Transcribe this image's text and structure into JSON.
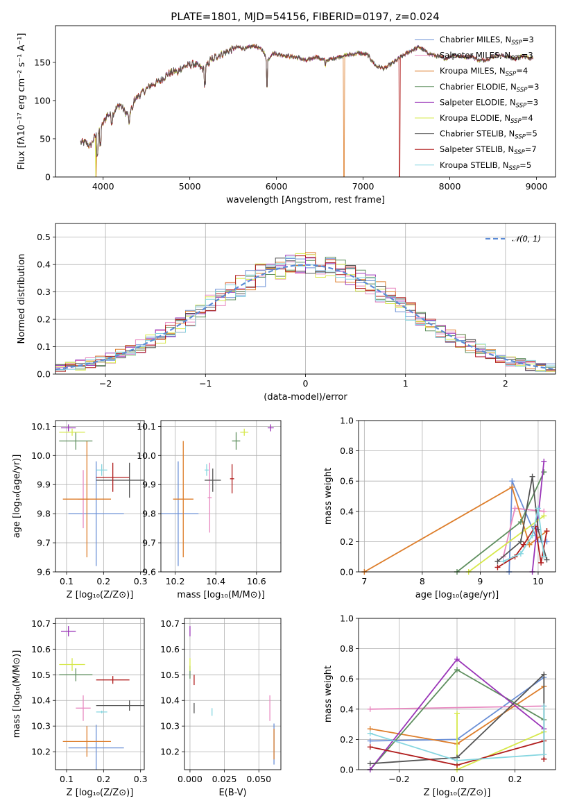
{
  "figure": {
    "title": "PLATE=1801, MJD=54156, FIBERID=0197, z=0.024"
  },
  "models": [
    {
      "name": "Chabrier MILES",
      "nssp": "3",
      "color": "#6a8fd6"
    },
    {
      "name": "Salpeter MILES",
      "nssp": "3",
      "color": "#e889c0"
    },
    {
      "name": "Kroupa MILES",
      "nssp": "4",
      "color": "#dd7d2a"
    },
    {
      "name": "Chabrier ELODIE",
      "nssp": "3",
      "color": "#5f8f5f"
    },
    {
      "name": "Salpeter ELODIE",
      "nssp": "3",
      "color": "#9a35b8"
    },
    {
      "name": "Kroupa ELODIE",
      "nssp": "4",
      "color": "#d6e84a"
    },
    {
      "name": "Chabrier STELIB",
      "nssp": "5",
      "color": "#555555"
    },
    {
      "name": "Salpeter STELIB",
      "nssp": "7",
      "color": "#b01c1c"
    },
    {
      "name": "Kroupa STELIB",
      "nssp": "5",
      "color": "#86d6e0"
    }
  ],
  "chart_data": [
    {
      "id": "spectrum",
      "type": "line",
      "xlabel": "wavelength [Angstrom, rest frame]",
      "ylabel": "Flux [fλ10⁻¹⁷ erg cm⁻² s⁻¹ A⁻¹]",
      "xlim": [
        3450,
        9220
      ],
      "ylim": [
        0,
        198
      ],
      "xticks": [
        4000,
        5000,
        6000,
        7000,
        8000,
        9000
      ],
      "yticks": [
        0,
        50,
        100,
        150
      ],
      "legend_loc": "upper-right",
      "continuum": [
        [
          3740,
          45
        ],
        [
          3800,
          45
        ],
        [
          3850,
          40
        ],
        [
          3900,
          52
        ],
        [
          3950,
          58
        ],
        [
          4000,
          70
        ],
        [
          4050,
          82
        ],
        [
          4100,
          80
        ],
        [
          4150,
          90
        ],
        [
          4200,
          95
        ],
        [
          4250,
          85
        ],
        [
          4300,
          80
        ],
        [
          4350,
          100
        ],
        [
          4450,
          110
        ],
        [
          4550,
          120
        ],
        [
          4650,
          125
        ],
        [
          4750,
          135
        ],
        [
          4860,
          140
        ],
        [
          4950,
          145
        ],
        [
          5050,
          148
        ],
        [
          5170,
          140
        ],
        [
          5250,
          155
        ],
        [
          5350,
          160
        ],
        [
          5450,
          165
        ],
        [
          5550,
          170
        ],
        [
          5650,
          168
        ],
        [
          5750,
          172
        ],
        [
          5850,
          165
        ],
        [
          5890,
          150
        ],
        [
          5950,
          162
        ],
        [
          6050,
          160
        ],
        [
          6150,
          158
        ],
        [
          6250,
          156
        ],
        [
          6350,
          152
        ],
        [
          6450,
          158
        ],
        [
          6563,
          152
        ],
        [
          6650,
          155
        ],
        [
          6750,
          158
        ],
        [
          6850,
          160
        ],
        [
          6950,
          162
        ],
        [
          7050,
          160
        ],
        [
          7150,
          145
        ],
        [
          7250,
          142
        ],
        [
          7350,
          150
        ],
        [
          7450,
          158
        ],
        [
          7550,
          165
        ],
        [
          7650,
          170
        ],
        [
          7750,
          162
        ],
        [
          7850,
          158
        ],
        [
          7950,
          155
        ],
        [
          8050,
          160
        ],
        [
          8150,
          157
        ],
        [
          8250,
          158
        ],
        [
          8350,
          152
        ],
        [
          8450,
          155
        ],
        [
          8550,
          160
        ],
        [
          8650,
          158
        ],
        [
          8750,
          155
        ],
        [
          8850,
          158
        ],
        [
          8950,
          155
        ]
      ],
      "drops": [
        {
          "model": 2,
          "x": 3920,
          "y": 0
        },
        {
          "model": 5,
          "x": 3915,
          "y": 0
        },
        {
          "model": 2,
          "x": 6780,
          "y": 0
        },
        {
          "model": 7,
          "x": 7420,
          "y": 0
        }
      ]
    },
    {
      "id": "residuals",
      "type": "histogram",
      "xlabel": "(data-model)/error",
      "ylabel": "Normed distribution",
      "xlim": [
        -2.5,
        2.5
      ],
      "ylim": [
        0,
        0.55
      ],
      "xticks": [
        -2,
        -1,
        0,
        1,
        2
      ],
      "yticks": [
        0.0,
        0.1,
        0.2,
        0.3,
        0.4,
        0.5
      ],
      "bin_width": 0.1,
      "legend": "𝒩(0, 1)",
      "legend_loc": "upper-right",
      "gaussian": {
        "mean": 0,
        "sigma": 1
      }
    },
    {
      "id": "age_vs_Z",
      "type": "errorbar",
      "xlabel": "Z [log₁₀(Z/Z⊙)]",
      "ylabel": "age [log₁₀(age/yr)]",
      "xlim": [
        0.07,
        0.31
      ],
      "ylim": [
        9.6,
        10.12
      ],
      "xticks": [
        0.1,
        0.2,
        0.3
      ],
      "yticks": [
        9.6,
        9.7,
        9.8,
        9.9,
        10.0,
        10.1
      ],
      "points": [
        {
          "model": 0,
          "x": 0.18,
          "y": 9.8,
          "xerr": 0.075,
          "yerr": 0.18
        },
        {
          "model": 1,
          "x": 0.145,
          "y": 9.85,
          "xerr": 0.015,
          "yerr": 0.1
        },
        {
          "model": 2,
          "x": 0.155,
          "y": 9.85,
          "xerr": 0.065,
          "yerr": 0.2
        },
        {
          "model": 3,
          "x": 0.125,
          "y": 10.05,
          "xerr": 0.045,
          "yerr": 0.03
        },
        {
          "model": 4,
          "x": 0.105,
          "y": 10.095,
          "xerr": 0.02,
          "yerr": 0.012
        },
        {
          "model": 5,
          "x": 0.115,
          "y": 10.08,
          "xerr": 0.035,
          "yerr": 0.012
        },
        {
          "model": 6,
          "x": 0.27,
          "y": 9.915,
          "xerr": 0.09,
          "yerr": 0.06
        },
        {
          "model": 7,
          "x": 0.225,
          "y": 9.925,
          "xerr": 0.045,
          "yerr": 0.05
        },
        {
          "model": 8,
          "x": 0.195,
          "y": 9.95,
          "xerr": 0.015,
          "yerr": 0.02
        }
      ]
    },
    {
      "id": "age_vs_mass",
      "type": "errorbar",
      "xlabel": "mass [log₁₀(M/M⊙)]",
      "ylabel": "",
      "xlim": [
        10.13,
        10.72
      ],
      "ylim": [
        9.6,
        10.12
      ],
      "xticks": [
        10.2,
        10.4,
        10.6
      ],
      "yticks": [
        9.6,
        9.7,
        9.8,
        9.9,
        10.0,
        10.1
      ],
      "points": [
        {
          "model": 0,
          "x": 10.215,
          "y": 9.8,
          "xerr": 0.1,
          "yerr": 0.18
        },
        {
          "model": 1,
          "x": 10.37,
          "y": 9.855,
          "xerr": 0.01,
          "yerr": 0.12
        },
        {
          "model": 2,
          "x": 10.24,
          "y": 9.85,
          "xerr": 0.05,
          "yerr": 0.2
        },
        {
          "model": 3,
          "x": 10.5,
          "y": 10.05,
          "xerr": 0.02,
          "yerr": 0.03
        },
        {
          "model": 4,
          "x": 10.67,
          "y": 10.095,
          "xerr": 0.015,
          "yerr": 0.012
        },
        {
          "model": 5,
          "x": 10.54,
          "y": 10.08,
          "xerr": 0.02,
          "yerr": 0.012
        },
        {
          "model": 6,
          "x": 10.385,
          "y": 9.915,
          "xerr": 0.04,
          "yerr": 0.04
        },
        {
          "model": 7,
          "x": 10.48,
          "y": 9.92,
          "xerr": 0.01,
          "yerr": 0.05
        },
        {
          "model": 8,
          "x": 10.355,
          "y": 9.95,
          "xerr": 0.01,
          "yerr": 0.02
        }
      ]
    },
    {
      "id": "weight_vs_age",
      "type": "line",
      "xlabel": "age [log₁₀(age/yr)]",
      "ylabel": "mass weight",
      "xlim": [
        6.9,
        10.3
      ],
      "ylim": [
        0,
        1.0
      ],
      "xticks": [
        7,
        8,
        9,
        10
      ],
      "yticks": [
        0.0,
        0.2,
        0.4,
        0.6,
        0.8,
        1.0
      ],
      "series": [
        {
          "model": 0,
          "points": [
            [
              9.5,
              0.0
            ],
            [
              9.55,
              0.6
            ],
            [
              10.0,
              0.2
            ],
            [
              10.15,
              0.2
            ]
          ]
        },
        {
          "model": 1,
          "points": [
            [
              9.4,
              0.1
            ],
            [
              9.6,
              0.42
            ],
            [
              10.1,
              0.4
            ]
          ]
        },
        {
          "model": 2,
          "points": [
            [
              7.0,
              0.0
            ],
            [
              9.55,
              0.56
            ],
            [
              9.85,
              0.18
            ],
            [
              10.15,
              0.27
            ]
          ]
        },
        {
          "model": 3,
          "points": [
            [
              8.6,
              0.0
            ],
            [
              9.7,
              0.33
            ],
            [
              10.1,
              0.66
            ]
          ]
        },
        {
          "model": 4,
          "points": [
            [
              9.9,
              0.0
            ],
            [
              10.1,
              0.73
            ]
          ]
        },
        {
          "model": 5,
          "points": [
            [
              8.8,
              0.0
            ],
            [
              10.1,
              0.37
            ]
          ]
        },
        {
          "model": 6,
          "points": [
            [
              9.3,
              0.07
            ],
            [
              9.7,
              0.2
            ],
            [
              9.9,
              0.63
            ],
            [
              10.0,
              0.28
            ],
            [
              10.15,
              0.08
            ]
          ]
        },
        {
          "model": 7,
          "points": [
            [
              9.3,
              0.03
            ],
            [
              9.6,
              0.1
            ],
            [
              9.75,
              0.18
            ],
            [
              9.95,
              0.3
            ],
            [
              10.05,
              0.06
            ],
            [
              10.15,
              0.27
            ]
          ]
        },
        {
          "model": 8,
          "points": [
            [
              9.4,
              0.07
            ],
            [
              9.7,
              0.12
            ],
            [
              9.9,
              0.24
            ],
            [
              10.0,
              0.42
            ],
            [
              10.1,
              0.1
            ]
          ]
        }
      ]
    },
    {
      "id": "mass_vs_Z",
      "type": "errorbar",
      "xlabel": "Z [log₁₀(Z/Z⊙)]",
      "ylabel": "mass [log₁₀(M/M⊙)]",
      "xlim": [
        0.07,
        0.31
      ],
      "ylim": [
        10.13,
        10.72
      ],
      "xticks": [
        0.1,
        0.2,
        0.3
      ],
      "yticks": [
        10.2,
        10.3,
        10.4,
        10.5,
        10.6,
        10.7
      ],
      "points": [
        {
          "model": 0,
          "x": 0.18,
          "y": 10.215,
          "xerr": 0.075,
          "yerr": 0.09
        },
        {
          "model": 1,
          "x": 0.145,
          "y": 10.37,
          "xerr": 0.02,
          "yerr": 0.05
        },
        {
          "model": 2,
          "x": 0.155,
          "y": 10.24,
          "xerr": 0.065,
          "yerr": 0.06
        },
        {
          "model": 3,
          "x": 0.125,
          "y": 10.5,
          "xerr": 0.045,
          "yerr": 0.025
        },
        {
          "model": 4,
          "x": 0.105,
          "y": 10.67,
          "xerr": 0.02,
          "yerr": 0.02
        },
        {
          "model": 5,
          "x": 0.115,
          "y": 10.54,
          "xerr": 0.035,
          "yerr": 0.025
        },
        {
          "model": 6,
          "x": 0.27,
          "y": 10.38,
          "xerr": 0.09,
          "yerr": 0.02
        },
        {
          "model": 7,
          "x": 0.225,
          "y": 10.48,
          "xerr": 0.045,
          "yerr": 0.015
        },
        {
          "model": 8,
          "x": 0.195,
          "y": 10.355,
          "xerr": 0.015,
          "yerr": 0.005
        }
      ]
    },
    {
      "id": "mass_vs_ebv",
      "type": "errorbar",
      "xlabel": "E(B-V)",
      "ylabel": "",
      "xlim": [
        -0.004,
        0.066
      ],
      "ylim": [
        10.13,
        10.72
      ],
      "xticks": [
        0.0,
        0.025,
        0.05
      ],
      "xtick_labels": [
        "0.000",
        "0.025",
        "0.050"
      ],
      "yticks": [
        10.2,
        10.3,
        10.4,
        10.5,
        10.6,
        10.7
      ],
      "points": [
        {
          "model": 0,
          "x": 0.061,
          "y": 10.23,
          "xerr": 0,
          "yerr": 0.08
        },
        {
          "model": 1,
          "x": 0.058,
          "y": 10.37,
          "xerr": 0,
          "yerr": 0.05
        },
        {
          "model": 2,
          "x": 0.061,
          "y": 10.23,
          "xerr": 0,
          "yerr": 0.06
        },
        {
          "model": 3,
          "x": 0.0,
          "y": 10.51,
          "xerr": 0,
          "yerr": 0.025
        },
        {
          "model": 4,
          "x": 0.0,
          "y": 10.67,
          "xerr": 0,
          "yerr": 0.02
        },
        {
          "model": 5,
          "x": 0.0,
          "y": 10.54,
          "xerr": 0,
          "yerr": 0.025
        },
        {
          "model": 6,
          "x": 0.003,
          "y": 10.37,
          "xerr": 0,
          "yerr": 0.02
        },
        {
          "model": 7,
          "x": 0.003,
          "y": 10.48,
          "xerr": 0,
          "yerr": 0.02
        },
        {
          "model": 8,
          "x": 0.016,
          "y": 10.355,
          "xerr": 0,
          "yerr": 0.015
        }
      ]
    },
    {
      "id": "weight_vs_Z",
      "type": "line",
      "xlabel": "Z [log₁₀(Z/Z⊙)]",
      "ylabel": "mass weight",
      "xlim": [
        -0.34,
        0.34
      ],
      "ylim": [
        0,
        1.0
      ],
      "xticks": [
        -0.2,
        0.0,
        0.2
      ],
      "xtick_labels": [
        "−0.2",
        "0.0",
        "0.2"
      ],
      "yticks": [
        0.0,
        0.2,
        0.4,
        0.6,
        0.8,
        1.0
      ],
      "series": [
        {
          "model": 0,
          "points": [
            [
              -0.3,
              0.19
            ],
            [
              0.0,
              0.2
            ],
            [
              0.3,
              0.61
            ]
          ]
        },
        {
          "model": 1,
          "points": [
            [
              -0.3,
              0.4
            ],
            [
              0.3,
              0.42
            ]
          ]
        },
        {
          "model": 2,
          "points": [
            [
              -0.3,
              0.27
            ],
            [
              0.0,
              0.17
            ],
            [
              0.3,
              0.55
            ]
          ]
        },
        {
          "model": 3,
          "points": [
            [
              -0.3,
              0.0
            ],
            [
              0.0,
              0.66
            ],
            [
              0.3,
              0.33
            ]
          ]
        },
        {
          "model": 4,
          "points": [
            [
              -0.3,
              0.0
            ],
            [
              0.0,
              0.73
            ],
            [
              0.3,
              0.27
            ]
          ]
        },
        {
          "model": 5,
          "points": [
            [
              0.0,
              0.37
            ],
            [
              0.0,
              0.0
            ],
            [
              0.3,
              0.25
            ]
          ]
        },
        {
          "model": 6,
          "points": [
            [
              -0.3,
              0.04
            ],
            [
              0.0,
              0.08
            ],
            [
              0.3,
              0.63
            ],
            [
              0.3,
              0.07
            ]
          ]
        },
        {
          "model": 7,
          "points": [
            [
              -0.3,
              0.15
            ],
            [
              0.0,
              0.03
            ],
            [
              0.3,
              0.19
            ],
            [
              0.3,
              0.07
            ]
          ]
        },
        {
          "model": 8,
          "points": [
            [
              -0.3,
              0.24
            ],
            [
              0.0,
              0.06
            ],
            [
              0.3,
              0.1
            ],
            [
              0.3,
              0.42
            ]
          ]
        }
      ]
    }
  ]
}
